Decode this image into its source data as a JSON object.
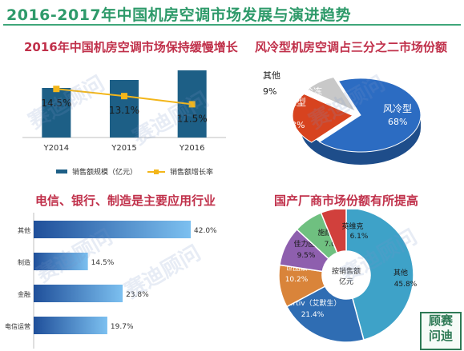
{
  "page_title": "2016-2017年中国机房空调市场发展与演进趋势",
  "watermark_text": "赛迪顾问",
  "logo_text": [
    "顾赛",
    "问迪"
  ],
  "colors": {
    "title_green": "#2e9a6a",
    "panel_red": "#c0304a",
    "bar_blue": "#1d5f86",
    "line_yellow": "#f3b61a",
    "hbar_blue": "#3f7fcf",
    "pie_blue": "#2c6cc2",
    "pie_red": "#d7431f"
  },
  "chart_data": [
    {
      "type": "bar",
      "title": "2016年中国机房空调市场保持缓慢增长",
      "categories": [
        "Y2014",
        "Y2015",
        "Y2016"
      ],
      "series": [
        {
          "name": "销售额规模（亿元）",
          "kind": "bar",
          "values": [
            null,
            null,
            null
          ]
        },
        {
          "name": "销售额增长率",
          "kind": "line",
          "values": [
            14.5,
            13.1,
            11.5
          ]
        }
      ],
      "data_labels": [
        "14.5%",
        "13.1%",
        "11.5%"
      ],
      "legend": "bottom"
    },
    {
      "type": "pie",
      "title": "风冷型机房空调占三分之二市场份额",
      "slices": [
        {
          "label": "风冷型",
          "value": 68,
          "value_text": "68%"
        },
        {
          "label": "水型",
          "value": 23,
          "value_text": "23%"
        },
        {
          "label": "其他",
          "value": 9,
          "value_text": "9%"
        }
      ],
      "extra_labels": [
        "冷冻"
      ]
    },
    {
      "type": "bar",
      "orientation": "horizontal",
      "title": "电信、银行、制造是主要应用行业",
      "categories": [
        "其他",
        "制造",
        "金融",
        "电信运营"
      ],
      "values": [
        42.0,
        14.5,
        23.8,
        19.7
      ],
      "value_labels": [
        "42.0%",
        "14.5%",
        "23.8%",
        "19.7%"
      ]
    },
    {
      "type": "pie",
      "title": "国产厂商市场份额有所提高",
      "center_label": "按销售额 亿元",
      "slices": [
        {
          "label": "其他",
          "value": 45.8,
          "value_text": "45.8%",
          "color": "#3ea2c8"
        },
        {
          "label": "Vertiv（艾默生）",
          "value": 21.4,
          "value_text": "21.4%",
          "color": "#2f6db3"
        },
        {
          "label": "世图兹",
          "value": 10.2,
          "value_text": "10.2%",
          "color": "#d9843a"
        },
        {
          "label": "佳力图",
          "value": 9.5,
          "value_text": "9.5%",
          "color": "#8e5fae"
        },
        {
          "label": "施耐德",
          "value": 7.0,
          "value_text": "7.0%",
          "color": "#6fc080"
        },
        {
          "label": "英维克",
          "value": 6.1,
          "value_text": "6.1%",
          "color": "#d1403c"
        }
      ]
    }
  ]
}
